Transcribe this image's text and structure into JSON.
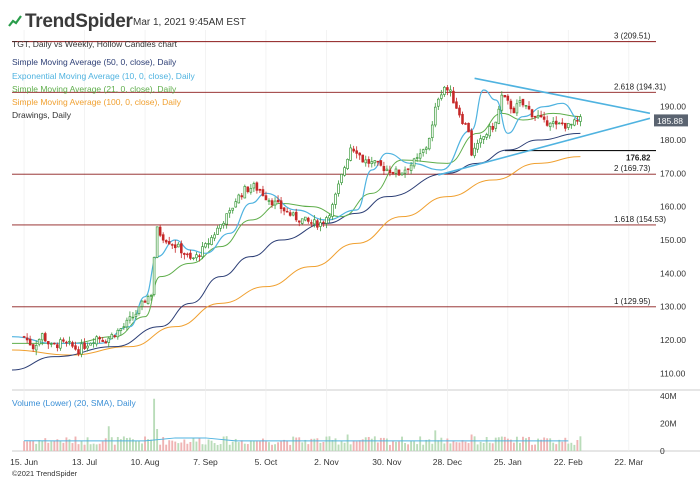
{
  "header": {
    "brand": "TrendSpider",
    "datetime": "Mar 1, 2021 9:45AM EST",
    "subtitle": "TGT, Daily vs Weekly, Hollow Candles chart",
    "volume_label": "Volume (Lower) (20, SMA), Daily",
    "copyright": "©2021 TrendSpider"
  },
  "legend": [
    {
      "label": "Simple Moving Average (50, 0, close), Daily",
      "color": "#2c3e75"
    },
    {
      "label": "Exponential Moving Average (10, 0, close), Daily",
      "color": "#4fb3e0"
    },
    {
      "label": "Simple Moving Average (21, 0, close), Daily",
      "color": "#5fae4b"
    },
    {
      "label": "Simple Moving Average (100, 0, close), Daily",
      "color": "#f0a030"
    },
    {
      "label": "Drawings, Daily",
      "color": "#333333"
    }
  ],
  "chart_data": {
    "type": "candlestick",
    "symbol": "TGT",
    "price_axis": {
      "ylim": [
        105,
        213
      ],
      "ticks": [
        110,
        120,
        130,
        140,
        150,
        160,
        170,
        180,
        190
      ]
    },
    "volume_axis": {
      "ylim": [
        0,
        40
      ],
      "unit": "M",
      "ticks": [
        "40M",
        "20M",
        "0"
      ]
    },
    "x_axis": {
      "labels": [
        "15. Jun",
        "13. Jul",
        "10. Aug",
        "7. Sep",
        "5. Oct",
        "2. Nov",
        "30. Nov",
        "28. Dec",
        "25. Jan",
        "22. Feb",
        "22. Mar"
      ],
      "label_day_index": [
        0,
        20,
        40,
        60,
        80,
        100,
        120,
        140,
        160,
        180,
        200
      ],
      "last_bar_index": 184,
      "range_days": [
        -4,
        209
      ]
    },
    "fib_levels": [
      {
        "label": "3 (209.51)",
        "value": 209.51
      },
      {
        "label": "2.618 (194.31)",
        "value": 194.31
      },
      {
        "label": "2 (169.73)",
        "value": 169.73
      },
      {
        "label": "1.618 (154.53)",
        "value": 154.53
      },
      {
        "label": "1 (129.95)",
        "value": 129.95
      }
    ],
    "fib_color": "#8b1a1a",
    "support_level": {
      "label": "176.82",
      "value": 176.82
    },
    "current_price": {
      "label": "185.88",
      "value": 185.88
    },
    "moving_average_paths": {
      "sma50": [
        [
          -4,
          111
        ],
        [
          10,
          115
        ],
        [
          30,
          118
        ],
        [
          45,
          124
        ],
        [
          55,
          131
        ],
        [
          65,
          139
        ],
        [
          75,
          145
        ],
        [
          85,
          150
        ],
        [
          100,
          155
        ],
        [
          110,
          158
        ],
        [
          120,
          163
        ],
        [
          140,
          170
        ],
        [
          150,
          173
        ],
        [
          160,
          177
        ],
        [
          170,
          180
        ],
        [
          184,
          182
        ]
      ],
      "ema10": [
        [
          -4,
          121
        ],
        [
          10,
          119
        ],
        [
          25,
          119
        ],
        [
          35,
          124
        ],
        [
          40,
          133
        ],
        [
          44,
          145
        ],
        [
          50,
          150
        ],
        [
          55,
          147
        ],
        [
          60,
          146
        ],
        [
          68,
          152
        ],
        [
          75,
          161
        ],
        [
          80,
          164
        ],
        [
          90,
          159
        ],
        [
          100,
          156
        ],
        [
          110,
          159
        ],
        [
          115,
          171
        ],
        [
          120,
          176
        ],
        [
          128,
          173
        ],
        [
          138,
          171
        ],
        [
          148,
          183
        ],
        [
          152,
          195
        ],
        [
          156,
          192
        ],
        [
          160,
          182
        ],
        [
          165,
          187
        ],
        [
          172,
          190
        ],
        [
          178,
          191
        ],
        [
          184,
          186
        ]
      ],
      "sma21": [
        [
          -4,
          119
        ],
        [
          15,
          119
        ],
        [
          30,
          121
        ],
        [
          40,
          127
        ],
        [
          45,
          139
        ],
        [
          55,
          143
        ],
        [
          65,
          148
        ],
        [
          75,
          156
        ],
        [
          85,
          161
        ],
        [
          95,
          160
        ],
        [
          105,
          157
        ],
        [
          115,
          164
        ],
        [
          125,
          174
        ],
        [
          140,
          173
        ],
        [
          150,
          182
        ],
        [
          158,
          188
        ],
        [
          165,
          186
        ],
        [
          175,
          188
        ],
        [
          184,
          187
        ]
      ],
      "sma100": [
        [
          -4,
          117
        ],
        [
          15,
          115.5
        ],
        [
          35,
          118
        ],
        [
          50,
          124
        ],
        [
          65,
          131
        ],
        [
          80,
          136
        ],
        [
          95,
          142
        ],
        [
          110,
          149
        ],
        [
          125,
          157
        ],
        [
          140,
          163
        ],
        [
          155,
          168
        ],
        [
          170,
          173
        ],
        [
          184,
          175
        ]
      ]
    },
    "trendlines": {
      "upper": [
        [
          149,
          198.5
        ],
        [
          207,
          188
        ]
      ],
      "lower": [
        [
          137,
          169.5
        ],
        [
          207,
          186.5
        ]
      ],
      "upper_color": "#4fb3e0",
      "lower_color": "#4fb3e0"
    },
    "price_anchors": [
      [
        0,
        121
      ],
      [
        3,
        118
      ],
      [
        6,
        121.5
      ],
      [
        9,
        118
      ],
      [
        12,
        119
      ],
      [
        15,
        118.5
      ],
      [
        18,
        117
      ],
      [
        21,
        119
      ],
      [
        24,
        121
      ],
      [
        27,
        120
      ],
      [
        30,
        122
      ],
      [
        33,
        124
      ],
      [
        36,
        127
      ],
      [
        38,
        129
      ],
      [
        40,
        132
      ],
      [
        42,
        134
      ],
      [
        43,
        145
      ],
      [
        44,
        153
      ],
      [
        46,
        151
      ],
      [
        49,
        149
      ],
      [
        52,
        147
      ],
      [
        55,
        144
      ],
      [
        57,
        145
      ],
      [
        60,
        148
      ],
      [
        63,
        152
      ],
      [
        66,
        156
      ],
      [
        68,
        158
      ],
      [
        70,
        162
      ],
      [
        73,
        165
      ],
      [
        76,
        166
      ],
      [
        78,
        165
      ],
      [
        80,
        163
      ],
      [
        83,
        161
      ],
      [
        86,
        159
      ],
      [
        89,
        157
      ],
      [
        92,
        156
      ],
      [
        95,
        155
      ],
      [
        98,
        155
      ],
      [
        100,
        157
      ],
      [
        102,
        160
      ],
      [
        104,
        166
      ],
      [
        106,
        172
      ],
      [
        107,
        175
      ],
      [
        108,
        178
      ],
      [
        110,
        177
      ],
      [
        112,
        174
      ],
      [
        115,
        173
      ],
      [
        118,
        172
      ],
      [
        121,
        171
      ],
      [
        124,
        170
      ],
      [
        127,
        172
      ],
      [
        130,
        174
      ],
      [
        133,
        178
      ],
      [
        135,
        184
      ],
      [
        136,
        189
      ],
      [
        137,
        193
      ],
      [
        139,
        196
      ],
      [
        141,
        194
      ],
      [
        143,
        190
      ],
      [
        145,
        186
      ],
      [
        147,
        183
      ],
      [
        148,
        176
      ],
      [
        150,
        178
      ],
      [
        152,
        181
      ],
      [
        154,
        183
      ],
      [
        156,
        185
      ],
      [
        157,
        189
      ],
      [
        158,
        193
      ],
      [
        160,
        191
      ],
      [
        162,
        189
      ],
      [
        164,
        191
      ],
      [
        166,
        190
      ],
      [
        168,
        188
      ],
      [
        170,
        187
      ],
      [
        172,
        185
      ],
      [
        174,
        186
      ],
      [
        176,
        184
      ],
      [
        178,
        185
      ],
      [
        180,
        184
      ],
      [
        182,
        185
      ],
      [
        184,
        185.88
      ]
    ],
    "volume_baseline_M": 8,
    "volume_spikes": [
      [
        43,
        38
      ],
      [
        28,
        18
      ],
      [
        44,
        16
      ],
      [
        107,
        12
      ],
      [
        136,
        15
      ],
      [
        148,
        12
      ],
      [
        157,
        10
      ],
      [
        160,
        9
      ]
    ]
  }
}
